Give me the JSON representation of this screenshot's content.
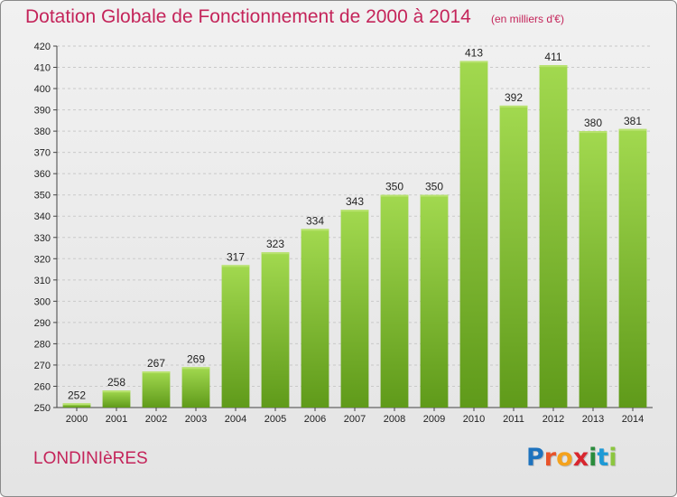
{
  "header": {
    "title": "Dotation Globale de Fonctionnement de 2000 à 2014",
    "subtitle": "(en milliers d'€)"
  },
  "footer": {
    "town": "LONDINIèRES",
    "brand_letters": [
      {
        "ch": "P",
        "color": "#1e73be"
      },
      {
        "ch": "r",
        "color": "#e8532a"
      },
      {
        "ch": "o",
        "color": "#f4a21d"
      },
      {
        "ch": "x",
        "color": "#d8262e"
      },
      {
        "ch": "i",
        "color": "#2a8c3c"
      },
      {
        "ch": "t",
        "color": "#1e9ad6"
      },
      {
        "ch": "i",
        "color": "#8cc63f"
      }
    ]
  },
  "chart_data": {
    "type": "bar",
    "categories": [
      "2000",
      "2001",
      "2002",
      "2003",
      "2004",
      "2005",
      "2006",
      "2007",
      "2008",
      "2009",
      "2010",
      "2011",
      "2012",
      "2013",
      "2014"
    ],
    "values": [
      252,
      258,
      267,
      269,
      317,
      323,
      334,
      343,
      350,
      350,
      413,
      392,
      411,
      380,
      381
    ],
    "ylim": [
      250,
      420
    ],
    "yticks": [
      250,
      260,
      270,
      280,
      290,
      300,
      310,
      320,
      330,
      340,
      350,
      360,
      370,
      380,
      390,
      400,
      410,
      420
    ],
    "grid": true,
    "bar_color": "#7cbb2f",
    "title": "Dotation Globale de Fonctionnement de 2000 à 2014"
  }
}
